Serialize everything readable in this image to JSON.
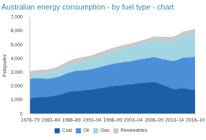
{
  "chart_data": {
    "type": "area",
    "title": "Australian energy consumption - by fuel type - chart",
    "y_label": "Petajoules",
    "categories": [
      "1978–79",
      null,
      null,
      null,
      null,
      "1983–84",
      null,
      null,
      null,
      null,
      "1988–89",
      null,
      null,
      null,
      null,
      "1993–94",
      null,
      null,
      null,
      null,
      "1998–99",
      null,
      null,
      null,
      null,
      "2003–04",
      null,
      null,
      null,
      null,
      "2008–09",
      null,
      null,
      null,
      null,
      "2013–14",
      null,
      null,
      null,
      null,
      "2018–19"
    ],
    "series": [
      {
        "name": "Coal",
        "color": "#1d5ea8",
        "values": [
          1100,
          1150,
          1180,
          1200,
          1200,
          1250,
          1300,
          1350,
          1450,
          1550,
          1600,
          1650,
          1650,
          1700,
          1720,
          1750,
          1800,
          1850,
          1900,
          1950,
          2000,
          2030,
          2050,
          2100,
          2120,
          2150,
          2200,
          2230,
          2250,
          2280,
          2300,
          2200,
          2100,
          2000,
          1850,
          1780,
          1800,
          1850,
          1800,
          1750,
          1720
        ]
      },
      {
        "name": "Oil",
        "color": "#4b8fd8",
        "values": [
          1400,
          1420,
          1380,
          1350,
          1320,
          1300,
          1310,
          1330,
          1350,
          1380,
          1420,
          1450,
          1460,
          1440,
          1450,
          1470,
          1500,
          1530,
          1560,
          1580,
          1600,
          1620,
          1640,
          1650,
          1660,
          1680,
          1700,
          1720,
          1740,
          1760,
          1800,
          1820,
          1850,
          1900,
          1980,
          2050,
          2120,
          2200,
          2270,
          2330,
          2400
        ]
      },
      {
        "name": "Gas",
        "color": "#a3d6e3",
        "values": [
          300,
          320,
          340,
          370,
          400,
          430,
          460,
          500,
          530,
          560,
          590,
          620,
          650,
          680,
          700,
          720,
          750,
          780,
          800,
          830,
          860,
          890,
          920,
          950,
          980,
          1000,
          1030,
          1060,
          1100,
          1150,
          1200,
          1250,
          1300,
          1350,
          1400,
          1450,
          1500,
          1550,
          1580,
          1620,
          1650
        ]
      },
      {
        "name": "Renewables",
        "color": "#c9c9c9",
        "values": [
          250,
          250,
          255,
          260,
          260,
          265,
          270,
          270,
          275,
          280,
          280,
          285,
          290,
          290,
          295,
          300,
          300,
          300,
          305,
          305,
          310,
          310,
          310,
          305,
          300,
          300,
          300,
          300,
          300,
          300,
          300,
          305,
          310,
          320,
          330,
          330,
          340,
          350,
          360,
          370,
          380
        ]
      }
    ],
    "ylim": [
      0,
      7000
    ],
    "yticks": [
      0,
      {
        "value": 1000,
        "label": "1,000"
      },
      {
        "value": 2000,
        "label": "2,000"
      },
      {
        "value": 3000,
        "label": "3,000"
      },
      {
        "value": 4000,
        "label": "4,000"
      },
      {
        "value": 5000,
        "label": "5,000"
      },
      {
        "value": 6000,
        "label": "6,000"
      },
      {
        "value": 7000,
        "label": "7,000"
      }
    ],
    "stacked": true,
    "grid": false,
    "legend": "bottom"
  }
}
